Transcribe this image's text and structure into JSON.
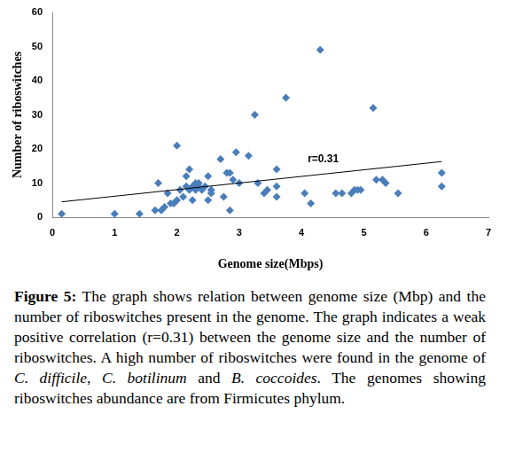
{
  "chart_data": {
    "type": "scatter",
    "x_label": "Genome size(Mbps)",
    "y_label": "Number of riboswitches",
    "xlim": [
      0,
      7
    ],
    "xticks": [
      0,
      1,
      2,
      3,
      4,
      5,
      6,
      7
    ],
    "ylim": [
      0,
      60
    ],
    "yticks": [
      0,
      10,
      20,
      30,
      40,
      50,
      60
    ],
    "grid": false,
    "series": [
      {
        "type": "scatter",
        "color": "#4a7ebb",
        "marker": "diamond",
        "x": [
          0.15,
          1.0,
          1.4,
          1.65,
          1.7,
          1.75,
          1.8,
          1.85,
          1.9,
          1.95,
          2.0,
          2.0,
          2.05,
          2.1,
          2.15,
          2.15,
          2.2,
          2.2,
          2.25,
          2.25,
          2.3,
          2.3,
          2.35,
          2.35,
          2.4,
          2.45,
          2.5,
          2.5,
          2.55,
          2.55,
          2.7,
          2.75,
          2.8,
          2.85,
          2.85,
          2.9,
          2.95,
          3.0,
          3.15,
          3.25,
          3.3,
          3.4,
          3.45,
          3.6,
          3.6,
          3.6,
          3.75,
          4.05,
          4.15,
          4.3,
          4.55,
          4.65,
          4.8,
          4.85,
          4.9,
          4.95,
          5.15,
          5.2,
          5.3,
          5.35,
          5.55,
          6.25,
          6.25
        ],
        "values": [
          1,
          1,
          1,
          2,
          10,
          2,
          3,
          7,
          4,
          4,
          21,
          5,
          8,
          6,
          9,
          12,
          14,
          8,
          9,
          5,
          10,
          8,
          9,
          10,
          8,
          9,
          12,
          5,
          7,
          8,
          17,
          6,
          13,
          2,
          13,
          11,
          19,
          10,
          18,
          30,
          10,
          7,
          8,
          9,
          14,
          6,
          35,
          7,
          4,
          49,
          7,
          7,
          7,
          8,
          8,
          8,
          32,
          11,
          11,
          10,
          7,
          13,
          9
        ]
      },
      {
        "type": "line",
        "color": "#000000",
        "line_style": "solid",
        "x": [
          0.15,
          6.25
        ],
        "values": [
          4.5,
          16.3
        ]
      }
    ],
    "annotations": [
      {
        "text": "r=0.31",
        "x": 4.1,
        "y": 15.5
      }
    ]
  },
  "caption": [
    {
      "text": "Figure 5:",
      "bold": true
    },
    {
      "text": " The graph shows relation between genome size (Mbp) and the number of riboswitches present in the genome. The graph indicates a weak positive correlation (r=0.31) between the genome size and the number of riboswitches. A high number of riboswitches were found in the genome of "
    },
    {
      "text": "C. difficile",
      "italic": true
    },
    {
      "text": ", "
    },
    {
      "text": "C. botilinum",
      "italic": true
    },
    {
      "text": " and "
    },
    {
      "text": "B. coccoides",
      "italic": true
    },
    {
      "text": ". The genomes showing riboswitches abundance are from Firmicutes phylum."
    }
  ]
}
